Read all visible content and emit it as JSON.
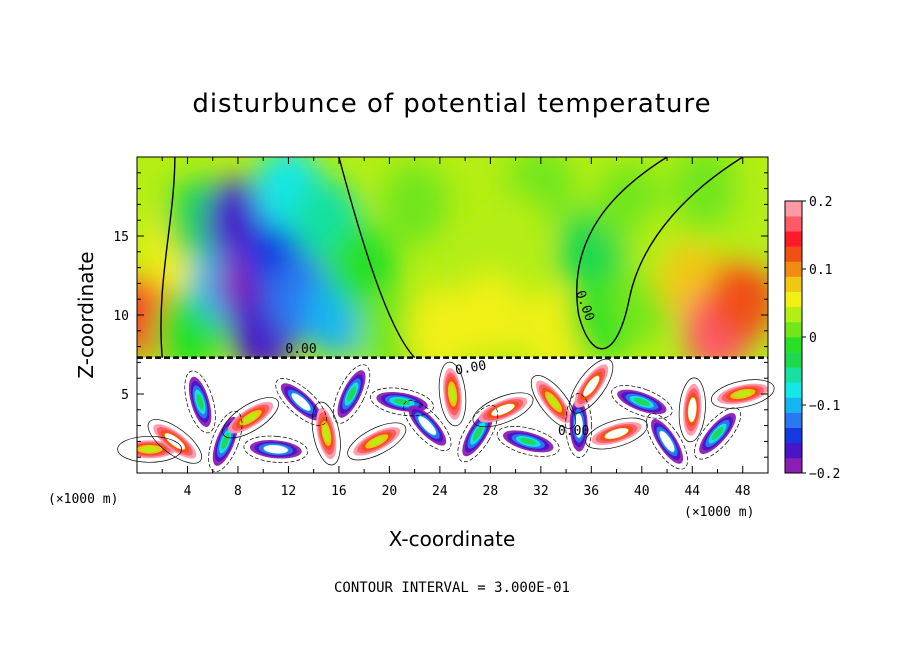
{
  "chart_data": {
    "type": "heatmap",
    "title": "disturbunce of potential temperature",
    "xlabel": "X-coordinate",
    "ylabel": "Z-coordinate",
    "x_unit": "(×1000 m)",
    "z_unit": "(×1000 m)",
    "xlim": [
      0,
      50
    ],
    "zlim": [
      0,
      20
    ],
    "x_ticks": [
      4,
      8,
      12,
      16,
      20,
      24,
      28,
      32,
      36,
      40,
      44,
      48
    ],
    "z_ticks": [
      5,
      10,
      15
    ],
    "footer": "CONTOUR INTERVAL = 3.000E-01",
    "contour_labels": [
      "0.00",
      "0.00",
      "0.00",
      "0.00"
    ],
    "colorbar": {
      "min": -0.2,
      "max": 0.2,
      "tick_labels": [
        "0.2",
        "0.1",
        "0",
        "−0.1",
        "−0.2"
      ],
      "colors": [
        "#8c1fb3",
        "#4a14c8",
        "#1638e0",
        "#2a78f0",
        "#16b4f0",
        "#15e6e6",
        "#18e0a0",
        "#1ed850",
        "#28e028",
        "#72e61a",
        "#b4ee14",
        "#f0f014",
        "#f0c814",
        "#f08c14",
        "#f05014",
        "#ff1a28",
        "#ff5a6a",
        "#ff9aa6"
      ]
    },
    "upper_field": [
      {
        "x": 1,
        "z": 10,
        "v": 0.14
      },
      {
        "x": 3,
        "z": 14,
        "v": 0.05
      },
      {
        "x": 4,
        "z": 9,
        "v": -0.02
      },
      {
        "x": 5,
        "z": 16,
        "v": -0.04
      },
      {
        "x": 7,
        "z": 12,
        "v": -0.1
      },
      {
        "x": 8,
        "z": 16,
        "v": -0.17
      },
      {
        "x": 9,
        "z": 12,
        "v": -0.18
      },
      {
        "x": 10,
        "z": 9,
        "v": -0.16
      },
      {
        "x": 11,
        "z": 14,
        "v": -0.14
      },
      {
        "x": 13,
        "z": 11,
        "v": -0.12
      },
      {
        "x": 12,
        "z": 18,
        "v": -0.08
      },
      {
        "x": 15,
        "z": 16,
        "v": -0.06
      },
      {
        "x": 16,
        "z": 10,
        "v": -0.09
      },
      {
        "x": 18,
        "z": 13,
        "v": -0.02
      },
      {
        "x": 20,
        "z": 9,
        "v": 0.01
      },
      {
        "x": 22,
        "z": 17,
        "v": 0.02
      },
      {
        "x": 26,
        "z": 13,
        "v": 0.04
      },
      {
        "x": 28,
        "z": 10,
        "v": 0.05
      },
      {
        "x": 32,
        "z": 18,
        "v": 0.02
      },
      {
        "x": 33,
        "z": 9,
        "v": 0.06
      },
      {
        "x": 36,
        "z": 14,
        "v": -0.03
      },
      {
        "x": 37,
        "z": 10,
        "v": -0.02
      },
      {
        "x": 39,
        "z": 17,
        "v": 0.01
      },
      {
        "x": 40,
        "z": 11,
        "v": 0.02
      },
      {
        "x": 42,
        "z": 14,
        "v": 0.03
      },
      {
        "x": 44,
        "z": 12,
        "v": 0.08
      },
      {
        "x": 46,
        "z": 9,
        "v": 0.17
      },
      {
        "x": 48,
        "z": 11,
        "v": 0.13
      },
      {
        "x": 49,
        "z": 16,
        "v": 0.04
      },
      {
        "x": 45,
        "z": 18,
        "v": 0.02
      },
      {
        "x": 30,
        "z": 15,
        "v": 0.03
      },
      {
        "x": 24,
        "z": 9,
        "v": 0.05
      }
    ],
    "lower_field": [
      {
        "x": 1,
        "z": 1.5,
        "v": 0.08
      },
      {
        "x": 3,
        "z": 2,
        "v": 0.1
      },
      {
        "x": 5,
        "z": 4.5,
        "v": -0.08
      },
      {
        "x": 7,
        "z": 2,
        "v": -0.06
      },
      {
        "x": 9,
        "z": 3.5,
        "v": 0.02
      },
      {
        "x": 11,
        "z": 1.5,
        "v": -0.12
      },
      {
        "x": 13,
        "z": 4.5,
        "v": -0.1
      },
      {
        "x": 15,
        "z": 2.5,
        "v": 0.05
      },
      {
        "x": 17,
        "z": 5,
        "v": -0.09
      },
      {
        "x": 19,
        "z": 2,
        "v": 0.03
      },
      {
        "x": 21,
        "z": 4.5,
        "v": -0.06
      },
      {
        "x": 23,
        "z": 3,
        "v": -0.1
      },
      {
        "x": 25,
        "z": 5,
        "v": 0.04
      },
      {
        "x": 27,
        "z": 2.5,
        "v": -0.09
      },
      {
        "x": 29,
        "z": 4,
        "v": 0.1
      },
      {
        "x": 31,
        "z": 2,
        "v": -0.06
      },
      {
        "x": 33,
        "z": 4.5,
        "v": 0.07
      },
      {
        "x": 35,
        "z": 3,
        "v": -0.12
      },
      {
        "x": 36,
        "z": 5.5,
        "v": 0.12
      },
      {
        "x": 38,
        "z": 2.5,
        "v": 0.1
      },
      {
        "x": 40,
        "z": 4.5,
        "v": -0.08
      },
      {
        "x": 42,
        "z": 2,
        "v": -0.1
      },
      {
        "x": 44,
        "z": 4,
        "v": 0.11
      },
      {
        "x": 46,
        "z": 2.5,
        "v": -0.07
      },
      {
        "x": 48,
        "z": 5,
        "v": 0.06
      }
    ]
  }
}
